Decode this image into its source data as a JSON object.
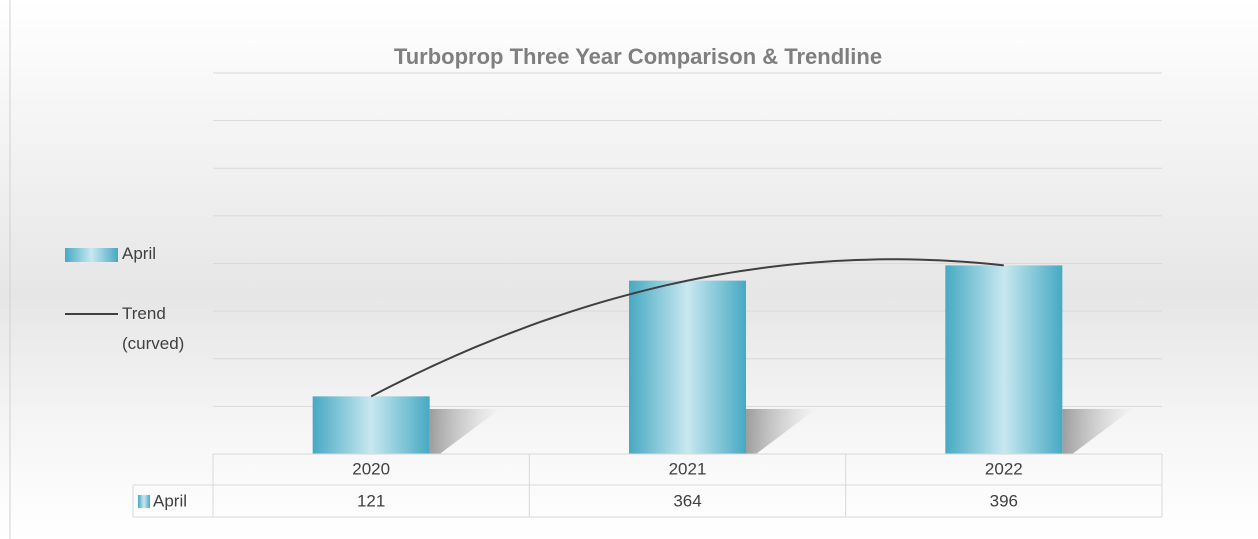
{
  "chart_data": {
    "type": "bar",
    "title": "Turboprop Three Year Comparison & Trendline",
    "categories": [
      "2020",
      "2021",
      "2022"
    ],
    "series": [
      {
        "name": "April",
        "color": "#4bacc6",
        "values": [
          121,
          364,
          396
        ]
      }
    ],
    "trendline": {
      "name": "Trend (curved)",
      "color": "#404040"
    },
    "ylim": [
      0,
      800
    ],
    "yticks": [
      0,
      100,
      200,
      300,
      400,
      500,
      600,
      700,
      800
    ],
    "grid": true,
    "legend": "left",
    "data_table": true
  }
}
